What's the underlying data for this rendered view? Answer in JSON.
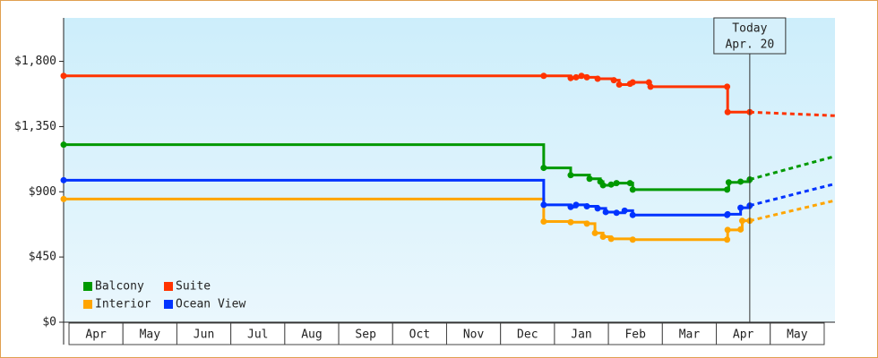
{
  "chart_data": {
    "type": "step-line",
    "ylim": [
      0,
      2100
    ],
    "yticks": [
      {
        "value": 0,
        "label": "$0"
      },
      {
        "value": 450,
        "label": "$450"
      },
      {
        "value": 900,
        "label": "$900"
      },
      {
        "value": 1350,
        "label": "$1,350"
      },
      {
        "value": 1800,
        "label": "$1,800"
      }
    ],
    "xlim": [
      -0.1,
      14.2
    ],
    "xticks": [
      {
        "value": 0.5,
        "label": "Apr"
      },
      {
        "value": 1.5,
        "label": "May"
      },
      {
        "value": 2.5,
        "label": "Jun"
      },
      {
        "value": 3.5,
        "label": "Jul"
      },
      {
        "value": 4.5,
        "label": "Aug"
      },
      {
        "value": 5.5,
        "label": "Sep"
      },
      {
        "value": 6.5,
        "label": "Oct"
      },
      {
        "value": 7.5,
        "label": "Nov"
      },
      {
        "value": 8.5,
        "label": "Dec"
      },
      {
        "value": 9.5,
        "label": "Jan"
      },
      {
        "value": 10.5,
        "label": "Feb"
      },
      {
        "value": 11.5,
        "label": "Mar"
      },
      {
        "value": 12.5,
        "label": "Apr"
      },
      {
        "value": 13.5,
        "label": "May"
      }
    ],
    "today": {
      "x": 12.62,
      "label": "Today",
      "date": "Apr. 20"
    },
    "series": [
      {
        "name": "Balcony",
        "color": "#009900",
        "x": [
          -0.1,
          8.8,
          9.3,
          9.65,
          9.85,
          9.9,
          10.05,
          10.15,
          10.4,
          10.45,
          12.2,
          12.23,
          12.45,
          12.62
        ],
        "values": [
          1225,
          1065,
          1015,
          990,
          970,
          945,
          950,
          960,
          960,
          915,
          915,
          965,
          970,
          985
        ],
        "projection_x": [
          12.62,
          14.2
        ],
        "projection_values": [
          985,
          1145
        ]
      },
      {
        "name": "Suite",
        "color": "#ff3300",
        "x": [
          -0.1,
          8.8,
          9.3,
          9.4,
          9.5,
          9.6,
          9.8,
          10.1,
          10.2,
          10.4,
          10.45,
          10.75,
          10.78,
          12.2,
          12.21,
          12.62
        ],
        "values": [
          1700,
          1700,
          1685,
          1690,
          1700,
          1690,
          1680,
          1670,
          1640,
          1645,
          1655,
          1655,
          1625,
          1625,
          1450,
          1450
        ],
        "projection_x": [
          12.62,
          14.2
        ],
        "projection_values": [
          1450,
          1425
        ]
      },
      {
        "name": "Interior",
        "color": "#ffa500",
        "x": [
          -0.1,
          8.8,
          9.3,
          9.6,
          9.75,
          9.9,
          10.05,
          10.45,
          12.2,
          12.21,
          12.45,
          12.48,
          12.62
        ],
        "values": [
          850,
          695,
          690,
          680,
          615,
          590,
          575,
          570,
          570,
          637,
          640,
          700,
          700
        ],
        "projection_x": [
          12.62,
          14.2
        ],
        "projection_values": [
          700,
          840
        ]
      },
      {
        "name": "Ocean View",
        "color": "#0033ff",
        "x": [
          -0.1,
          8.8,
          9.3,
          9.4,
          9.6,
          9.8,
          9.95,
          10.15,
          10.3,
          10.45,
          12.2,
          12.21,
          12.45,
          12.62
        ],
        "values": [
          980,
          810,
          795,
          810,
          800,
          785,
          760,
          755,
          770,
          740,
          740,
          745,
          790,
          805
        ],
        "projection_x": [
          12.62,
          14.2
        ],
        "projection_values": [
          805,
          955
        ]
      }
    ]
  }
}
